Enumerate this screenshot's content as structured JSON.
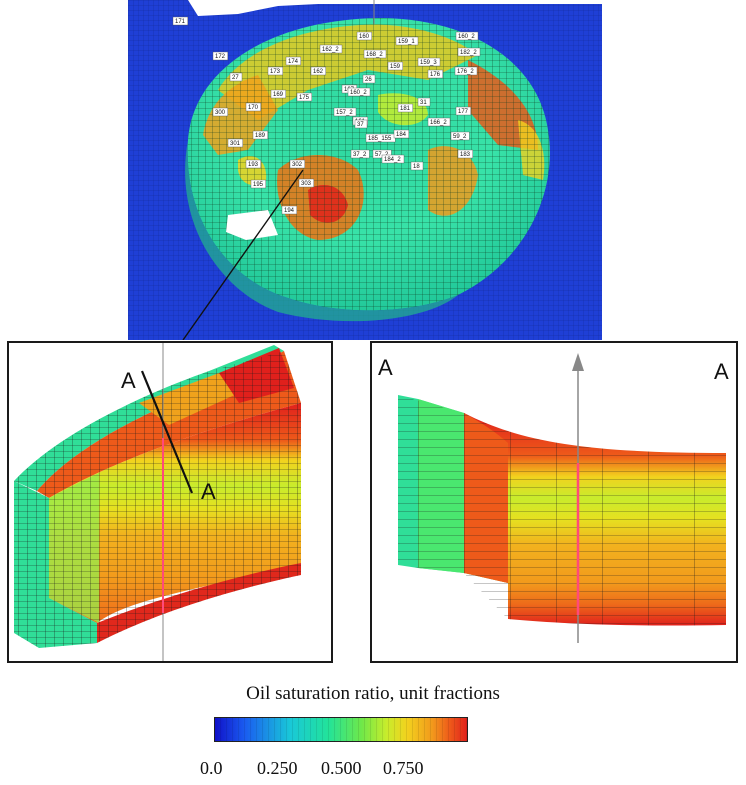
{
  "colors": {
    "background_grid": "#1f3fd6",
    "scale": [
      "#1010c8",
      "#1a5cf0",
      "#19c8d8",
      "#22e39a",
      "#6ee84a",
      "#c8ec2c",
      "#f2d21e",
      "#f29a1c",
      "#ee5a1a",
      "#e0201c"
    ]
  },
  "wells": [
    "171",
    "172",
    "173",
    "174",
    "162",
    "162_2",
    "160",
    "159_1",
    "160_2",
    "159_3",
    "182_2",
    "176",
    "176_2",
    "167",
    "26",
    "168_2",
    "159",
    "177",
    "300",
    "170",
    "157_2",
    "160_2",
    "181",
    "31",
    "166_2",
    "57_2",
    "301",
    "189",
    "161",
    "185_155",
    "184",
    "59_2",
    "193",
    "302",
    "37_2",
    "184_2",
    "18",
    "183",
    "195",
    "303",
    "194",
    "27",
    "169",
    "175",
    "37"
  ],
  "section": {
    "start_label": "A",
    "end_label": "A"
  },
  "legend": {
    "title": "Oil saturation ratio, unit fractions",
    "ticks": [
      "0.0",
      "0.250",
      "0.500",
      "0.750"
    ]
  }
}
